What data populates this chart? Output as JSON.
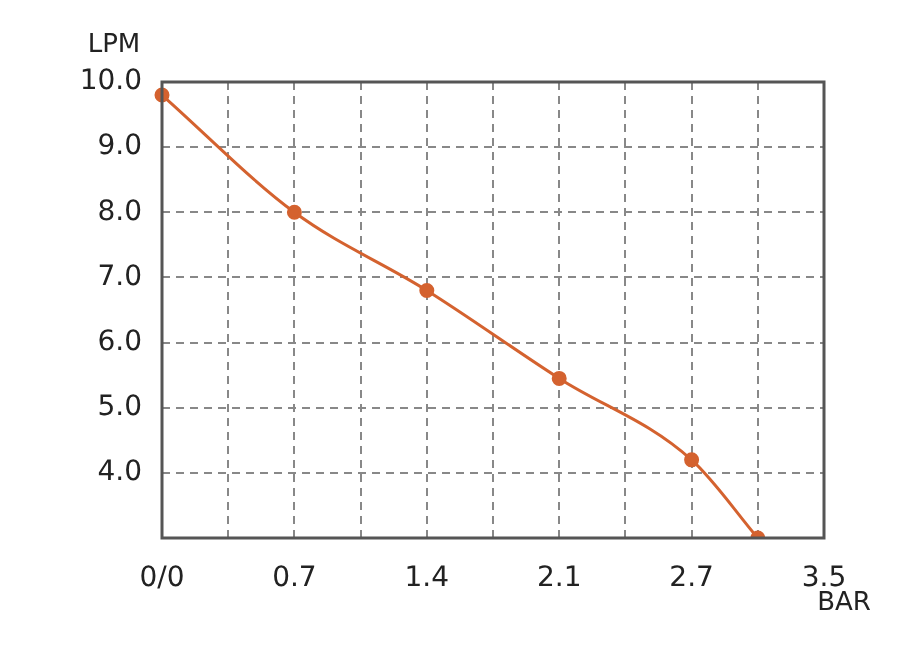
{
  "chart_data": {
    "type": "line",
    "xlabel": "BAR",
    "ylabel": "LPM",
    "categories": [
      "0/0",
      null,
      "0.7",
      null,
      "1.4",
      null,
      "2.1",
      null,
      "2.7",
      null,
      "3.5"
    ],
    "series": [
      {
        "color": "#d4622f",
        "values": [
          9.8,
          null,
          8.0,
          null,
          6.8,
          null,
          5.45,
          null,
          4.2,
          3.0,
          null
        ]
      }
    ],
    "ylim": [
      3,
      10
    ],
    "yticks": [
      {
        "value": 4,
        "label": "4.0"
      },
      {
        "value": 5,
        "label": "5.0"
      },
      {
        "value": 6,
        "label": "6.0"
      },
      {
        "value": 7,
        "label": "7.0"
      },
      {
        "value": 8,
        "label": "8.0"
      },
      {
        "value": 9,
        "label": "9.0"
      },
      {
        "value": 10,
        "label": "10.0"
      }
    ],
    "grid": true,
    "legend": false,
    "marker": "circle",
    "line_style": "solid"
  }
}
